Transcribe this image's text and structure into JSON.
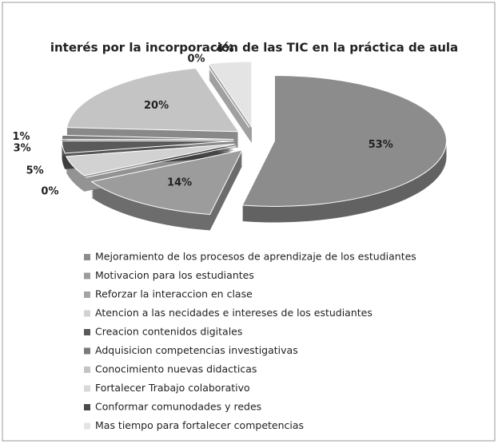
{
  "chart_data": {
    "type": "pie",
    "title": "interés por la incorporación de las TIC en la práctica de aula",
    "categories": [
      "Mejoramiento de los procesos de aprendizaje de los estudiantes",
      "Motivacion para los estudiantes",
      "Reforzar la interaccion en clase",
      "Atencion a las necidades e intereses de los estudiantes",
      "Creacion contenidos digitales",
      "Adquisicion competencias investigativas",
      "Conocimiento nuevas didacticas",
      "Fortalecer Trabajo colaborativo",
      "Conformar comunodades y redes",
      "Mas tiempo para fortalecer competencias"
    ],
    "values": [
      53,
      14,
      0,
      5,
      3,
      1,
      20,
      0,
      0,
      4
    ],
    "value_labels": [
      "53%",
      "14%",
      "0%",
      "5%",
      "3%",
      "1%",
      "20%",
      "0%",
      null,
      "4%"
    ],
    "colors": [
      "#8c8c8c",
      "#9c9c9c",
      "#a4a4a4",
      "#d2d2d2",
      "#5a5a5a",
      "#7a7a7a",
      "#c4c4c4",
      "#d8d8d8",
      "#4a4a4a",
      "#e4e4e4"
    ],
    "legend": "bottom"
  }
}
